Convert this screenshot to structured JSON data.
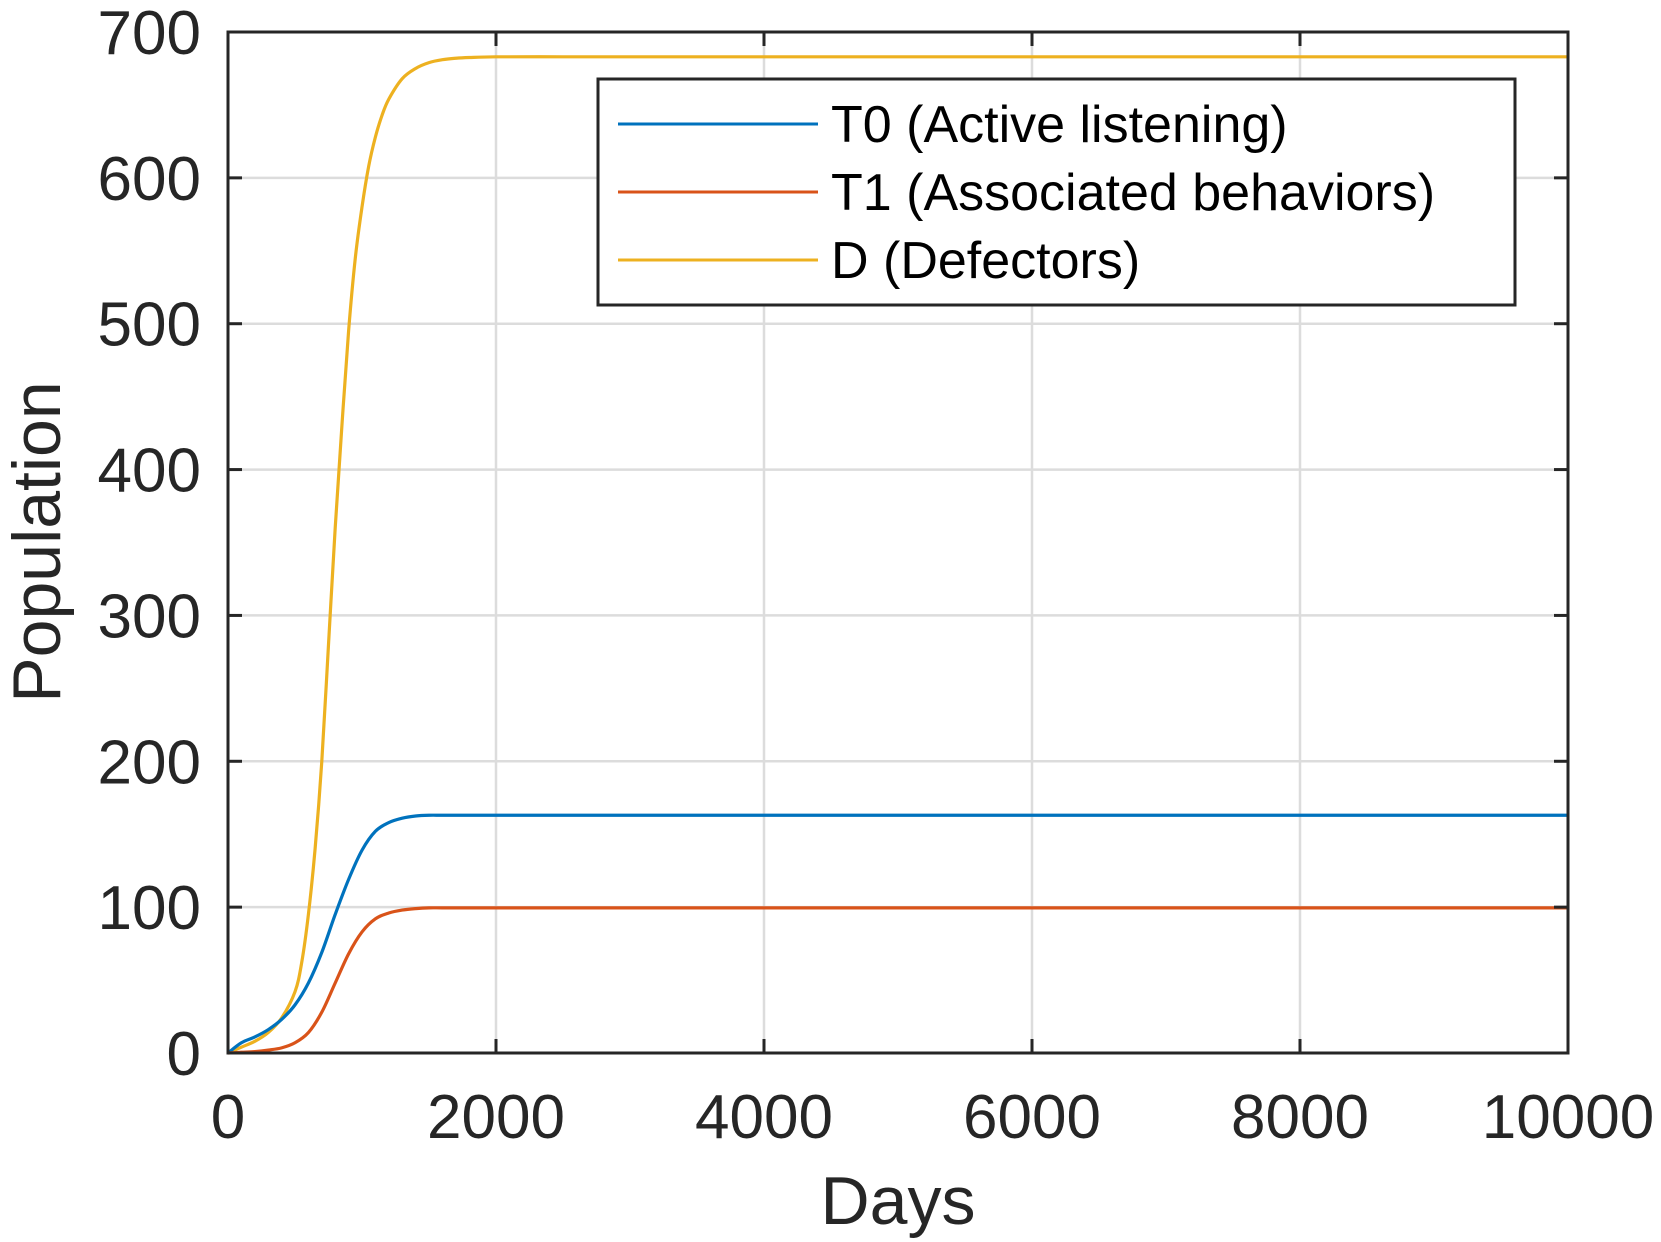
{
  "chart_data": {
    "type": "line",
    "xlabel": "Days",
    "ylabel": "Population",
    "xlim": [
      0,
      10000
    ],
    "ylim": [
      0,
      700
    ],
    "xticks": [
      0,
      2000,
      4000,
      6000,
      8000,
      10000
    ],
    "yticks": [
      0,
      100,
      200,
      300,
      400,
      500,
      600,
      700
    ],
    "xtick_labels": [
      "0",
      "2000",
      "4000",
      "6000",
      "8000",
      "10000"
    ],
    "ytick_labels": [
      "0",
      "100",
      "200",
      "300",
      "400",
      "500",
      "600",
      "700"
    ],
    "grid": true,
    "legend_position": "top-right",
    "series": [
      {
        "name": "T0 (Active listening)",
        "color": "#0072BD",
        "x": [
          0,
          100,
          200,
          300,
          400,
          500,
          600,
          700,
          800,
          900,
          1000,
          1100,
          1200,
          1300,
          1400,
          1500,
          1600,
          1800,
          2000,
          2500,
          3000,
          4000,
          6000,
          8000,
          10000
        ],
        "y": [
          0,
          7,
          11,
          16,
          23,
          33,
          48,
          69,
          95,
          119,
          139,
          152,
          158,
          161,
          162.5,
          163,
          163,
          163,
          163,
          163,
          163,
          163,
          163,
          163,
          163
        ]
      },
      {
        "name": "T1 (Associated behaviors)",
        "color": "#D95319",
        "x": [
          0,
          100,
          200,
          300,
          400,
          500,
          600,
          700,
          800,
          900,
          1000,
          1100,
          1200,
          1300,
          1400,
          1500,
          1600,
          1800,
          2000,
          2500,
          3000,
          4000,
          6000,
          8000,
          10000
        ],
        "y": [
          0,
          0.5,
          1,
          2,
          3.5,
          7,
          14,
          28,
          48,
          68,
          83,
          92,
          96,
          98,
          99,
          99.5,
          99.5,
          99.5,
          99.5,
          99.5,
          99.5,
          99.5,
          99.5,
          99.5,
          99.5
        ]
      },
      {
        "name": "D (Defectors)",
        "color": "#EDB120",
        "x": [
          0,
          100,
          200,
          300,
          400,
          500,
          550,
          600,
          650,
          700,
          750,
          800,
          850,
          900,
          950,
          1000,
          1050,
          1100,
          1150,
          1200,
          1300,
          1400,
          1500,
          1600,
          1700,
          1800,
          2000,
          2500,
          3000,
          4000,
          6000,
          8000,
          10000
        ],
        "y": [
          0,
          4,
          8,
          14,
          24,
          42,
          62,
          95,
          140,
          200,
          280,
          360,
          430,
          495,
          545,
          580,
          608,
          628,
          643,
          654,
          668,
          675,
          679,
          681,
          682,
          682.5,
          683,
          683,
          683,
          683,
          683,
          683,
          683
        ]
      }
    ]
  }
}
